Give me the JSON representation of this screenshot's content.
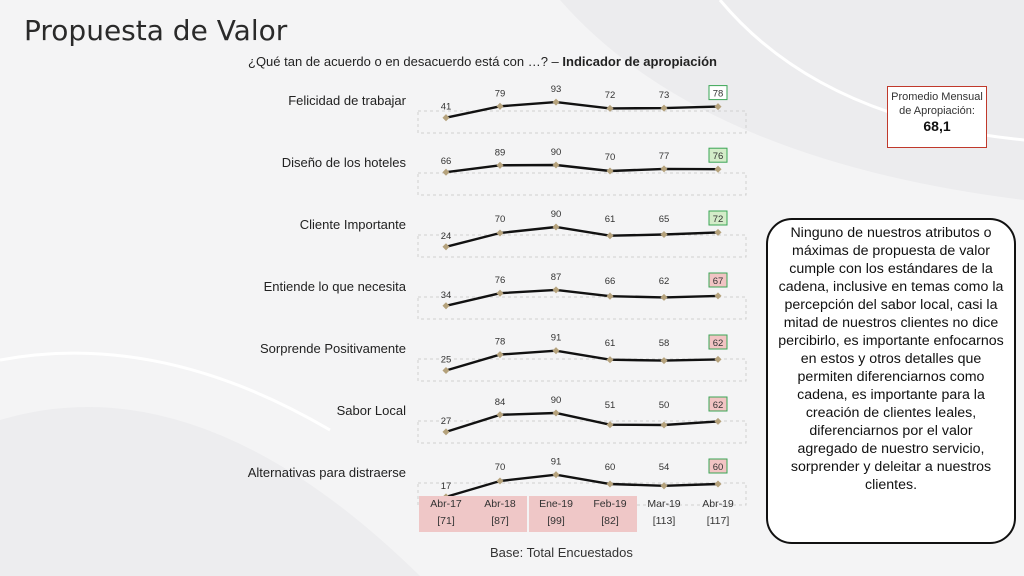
{
  "title": "Propuesta de Valor",
  "subtitle": {
    "question": "¿Qué tan de acuerdo o en desacuerdo está con …? –",
    "indicator": "Indicador de apropiación"
  },
  "average_box": {
    "label": "Promedio Mensual de Apropiación:",
    "value": "68,1"
  },
  "note": "Ninguno de nuestros atributos o máximas de propuesta de valor cumple con los estándares de la cadena, inclusive en temas como la percepción del sabor local, casi la mitad de nuestros clientes no dice percibirlo, es importante enfocarnos en estos y otros detalles que permiten diferenciarnos como cadena, es importante para la creación de clientes leales, diferenciarnos por el valor agregado de nuestro servicio, sorprender y deleitar a nuestros clientes.",
  "base_label": "Base: Total Encuestados",
  "colors": {
    "line": "#111111",
    "marker": "#b5a27c",
    "green_box_border": "#3aa655",
    "green_fill": "#d4ecc9",
    "red_fill": "#f2c4c4",
    "red_border": "#c0392b",
    "axis_highlight": "#efc7c7"
  },
  "chart_data": {
    "type": "line",
    "categories": [
      "Abr-17",
      "Abr-18",
      "Ene-19",
      "Feb-19",
      "Mar-19",
      "Abr-19"
    ],
    "category_bases": [
      "[71]",
      "[87]",
      "[99]",
      "[82]",
      "[113]",
      "[117]"
    ],
    "highlighted_categories": [
      "Abr-17",
      "Abr-18",
      "Ene-19",
      "Feb-19"
    ],
    "series": [
      {
        "name": "Felicidad de trabajar",
        "values": [
          41,
          79,
          93,
          72,
          73,
          78
        ],
        "last_status": "good"
      },
      {
        "name": "Diseño de los hoteles",
        "values": [
          66,
          89,
          90,
          70,
          77,
          76
        ],
        "last_status": "good-fill"
      },
      {
        "name": "Cliente Importante",
        "values": [
          24,
          70,
          90,
          61,
          65,
          72
        ],
        "last_status": "good-fill"
      },
      {
        "name": "Entiende lo que necesita",
        "values": [
          34,
          76,
          87,
          66,
          62,
          67
        ],
        "last_status": "bad"
      },
      {
        "name": "Sorprende Positivamente",
        "values": [
          25,
          78,
          91,
          61,
          58,
          62
        ],
        "last_status": "bad"
      },
      {
        "name": "Sabor Local",
        "values": [
          27,
          84,
          90,
          51,
          50,
          62
        ],
        "last_status": "bad"
      },
      {
        "name": "Alternativas para distraerse",
        "values": [
          17,
          70,
          91,
          60,
          54,
          60
        ],
        "last_status": "bad"
      }
    ],
    "ylim": [
      0,
      100
    ]
  }
}
